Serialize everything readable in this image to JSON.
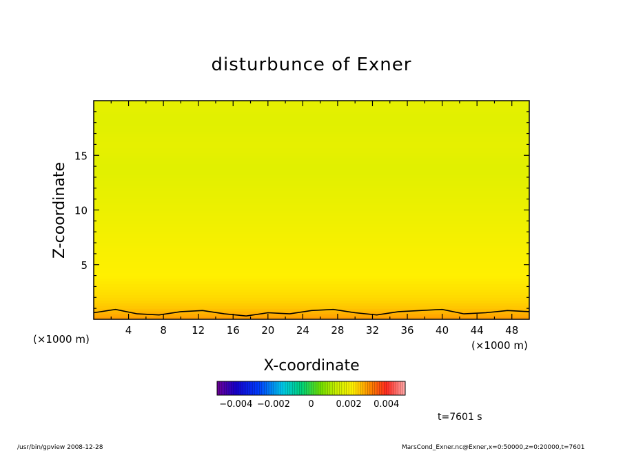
{
  "chart_data": {
    "type": "heatmap",
    "title": "disturbunce of Exner",
    "xlabel": "X-coordinate",
    "ylabel": "Z-coordinate",
    "x_unit": "(×1000 m)",
    "y_unit": "(×1000 m)",
    "xlim": [
      0,
      50
    ],
    "ylim": [
      0,
      20
    ],
    "x_ticks": [
      4,
      8,
      12,
      16,
      20,
      24,
      28,
      32,
      36,
      40,
      44,
      48
    ],
    "y_ticks": [
      5,
      10,
      15
    ],
    "colorbar": {
      "range": [
        -0.005,
        0.005
      ],
      "tick_values": [
        -0.004,
        -0.002,
        0,
        0.002,
        0.004
      ],
      "tick_labels": [
        "−0.004",
        "−0.002",
        "0",
        "0.002",
        "0.004"
      ]
    },
    "field_levels": {
      "z": [
        0,
        1,
        2,
        4,
        6,
        8,
        10,
        12,
        14,
        16,
        18,
        20
      ],
      "value": [
        0.003,
        0.0026,
        0.0024,
        0.0022,
        0.0021,
        0.002,
        0.0019,
        0.0018,
        0.0017,
        0.0018,
        0.0017,
        0.0018
      ]
    },
    "contour_line_z": [
      0.6,
      0.9,
      0.5,
      0.4,
      0.7,
      0.8,
      0.5,
      0.3,
      0.6,
      0.5,
      0.8,
      0.9,
      0.6,
      0.4,
      0.7,
      0.8,
      0.9,
      0.5,
      0.6,
      0.8,
      0.7
    ],
    "time_label": "t=7601 s"
  },
  "footer": {
    "left": "/usr/bin/gpview  2008-12-28",
    "right": "MarsCond_Exner.nc@Exner,x=0:50000,z=0:20000,t=7601"
  }
}
